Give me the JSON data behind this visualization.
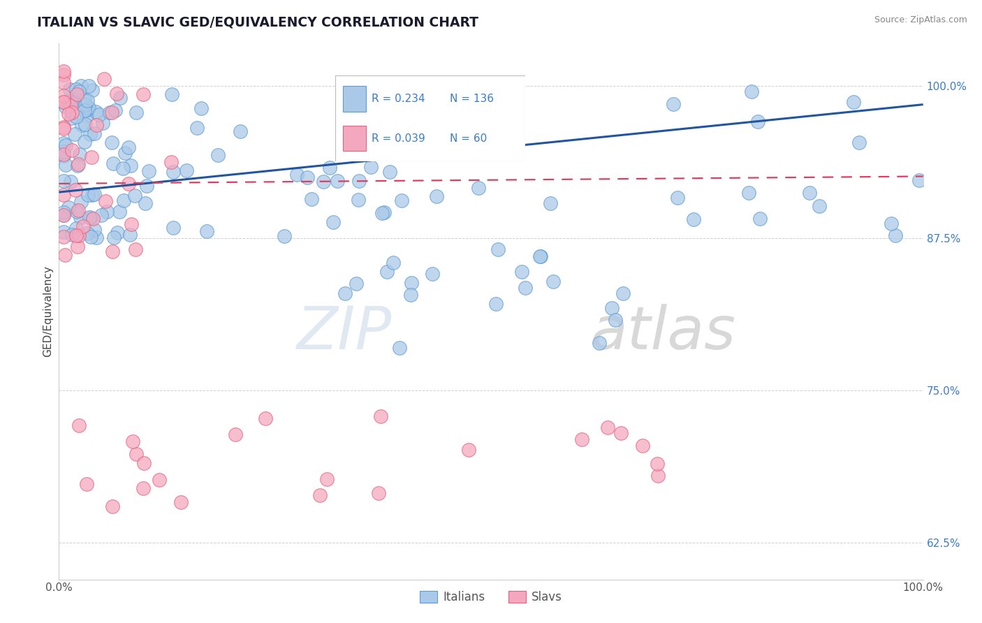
{
  "title": "ITALIAN VS SLAVIC GED/EQUIVALENCY CORRELATION CHART",
  "source": "Source: ZipAtlas.com",
  "ylabel": "GED/Equivalency",
  "legend_italians": "Italians",
  "legend_slavs": "Slavs",
  "italian_R": "0.234",
  "italian_N": "136",
  "slavic_R": "0.039",
  "slavic_N": "60",
  "xlim": [
    0.0,
    1.0
  ],
  "ylim": [
    0.595,
    1.035
  ],
  "yticks": [
    0.625,
    0.75,
    0.875,
    1.0
  ],
  "ytick_labels": [
    "62.5%",
    "75.0%",
    "87.5%",
    "100.0%"
  ],
  "xticks": [
    0.0,
    1.0
  ],
  "xtick_labels": [
    "0.0%",
    "100.0%"
  ],
  "background_color": "#ffffff",
  "italian_color": "#aac9e8",
  "italian_edge": "#5b9bd5",
  "slavic_color": "#f4a8bf",
  "slavic_edge": "#e8607a",
  "trend_italian_color": "#2255a0",
  "trend_slavic_color": "#d94060",
  "watermark_zip": "ZIP",
  "watermark_atlas": "atlas",
  "grid_color": "#d0d0d0",
  "title_color": "#1a1a2e",
  "source_color": "#888888",
  "tick_label_color_y": "#3a7dc9",
  "tick_label_color_x": "#555555",
  "ylabel_color": "#444444",
  "legend_text_color": "#3a7dc9"
}
